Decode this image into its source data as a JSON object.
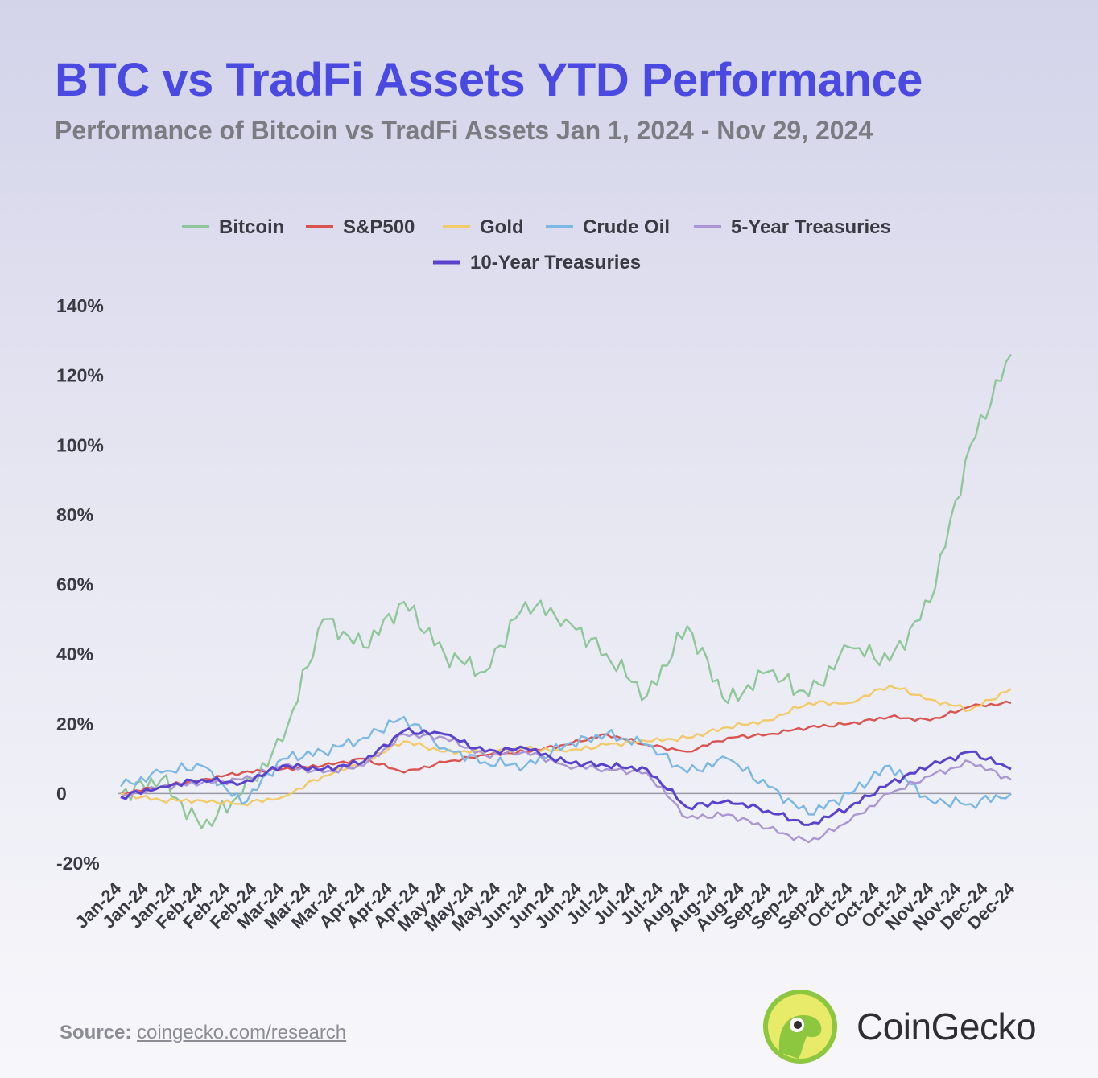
{
  "title": "BTC vs TradFi Assets YTD Performance",
  "subtitle": "Performance of Bitcoin vs TradFi Assets Jan 1, 2024 - Nov 29, 2024",
  "source": {
    "label": "Source:",
    "link": "coingecko.com/research"
  },
  "brand": {
    "name": "CoinGecko"
  },
  "chart_data": {
    "type": "line",
    "title": "",
    "xlabel": "",
    "ylabel": "",
    "ylim": [
      -20,
      140
    ],
    "y_ticks": [
      -20,
      0,
      20,
      40,
      60,
      80,
      100,
      120,
      140
    ],
    "y_tick_labels": [
      "-20%",
      "0",
      "20%",
      "40%",
      "60%",
      "80%",
      "100%",
      "120%",
      "140%"
    ],
    "x_tick_labels": [
      "Jan-24",
      "Jan-24",
      "Jan-24",
      "Feb-24",
      "Feb-24",
      "Feb-24",
      "Mar-24",
      "Mar-24",
      "Mar-24",
      "Apr-24",
      "Apr-24",
      "Apr-24",
      "May-24",
      "May-24",
      "May-24",
      "Jun-24",
      "Jun-24",
      "Jun-24",
      "Jul-24",
      "Jul-24",
      "Jul-24",
      "Aug-24",
      "Aug-24",
      "Aug-24",
      "Sep-24",
      "Sep-24",
      "Sep-24",
      "Oct-24",
      "Oct-24",
      "Oct-24",
      "Nov-24",
      "Nov-24",
      "Dec-24",
      "Dec-24"
    ],
    "grid": false,
    "legend_position": "top-center",
    "x": [
      "Jan-01",
      "Jan-15",
      "Feb-01",
      "Feb-15",
      "Mar-01",
      "Mar-15",
      "Apr-01",
      "Apr-15",
      "May-01",
      "May-15",
      "Jun-01",
      "Jun-15",
      "Jul-01",
      "Jul-15",
      "Aug-01",
      "Aug-15",
      "Sep-01",
      "Sep-15",
      "Oct-01",
      "Oct-15",
      "Nov-01",
      "Nov-15",
      "Nov-29"
    ],
    "series": [
      {
        "name": "Bitcoin",
        "color": "#8fc79a",
        "values": [
          0,
          4,
          -10,
          0,
          15,
          50,
          42,
          55,
          40,
          35,
          55,
          50,
          40,
          28,
          48,
          26,
          35,
          28,
          42,
          38,
          55,
          100,
          126
        ]
      },
      {
        "name": "S&P500",
        "color": "#d9534f",
        "values": [
          0,
          2,
          4,
          6,
          7,
          8,
          10,
          6,
          9,
          11,
          12,
          14,
          17,
          14,
          12,
          16,
          17,
          19,
          20,
          22,
          21,
          25,
          26
        ]
      },
      {
        "name": "Gold",
        "color": "#f3ca6a",
        "values": [
          0,
          -2,
          -2,
          -3,
          -1,
          5,
          9,
          15,
          12,
          12,
          13,
          12,
          14,
          15,
          16,
          19,
          21,
          26,
          26,
          31,
          27,
          24,
          30
        ]
      },
      {
        "name": "Crude Oil",
        "color": "#7cb8e4",
        "values": [
          2,
          6,
          8,
          -3,
          10,
          12,
          16,
          22,
          13,
          9,
          8,
          14,
          17,
          14,
          6,
          10,
          2,
          -6,
          0,
          8,
          -2,
          -3,
          0
        ]
      },
      {
        "name": "5-Year Treasuries",
        "color": "#ab96d4",
        "values": [
          -1,
          2,
          3,
          4,
          8,
          6,
          8,
          17,
          16,
          11,
          12,
          8,
          7,
          6,
          -7,
          -6,
          -10,
          -14,
          -8,
          0,
          5,
          9,
          4
        ]
      },
      {
        "name": "10-Year Treasuries",
        "color": "#5a42cc",
        "values": [
          -1,
          2,
          4,
          3,
          8,
          7,
          9,
          18,
          17,
          12,
          13,
          9,
          8,
          7,
          -4,
          -2,
          -5,
          -9,
          -4,
          3,
          8,
          12,
          7
        ]
      }
    ]
  }
}
